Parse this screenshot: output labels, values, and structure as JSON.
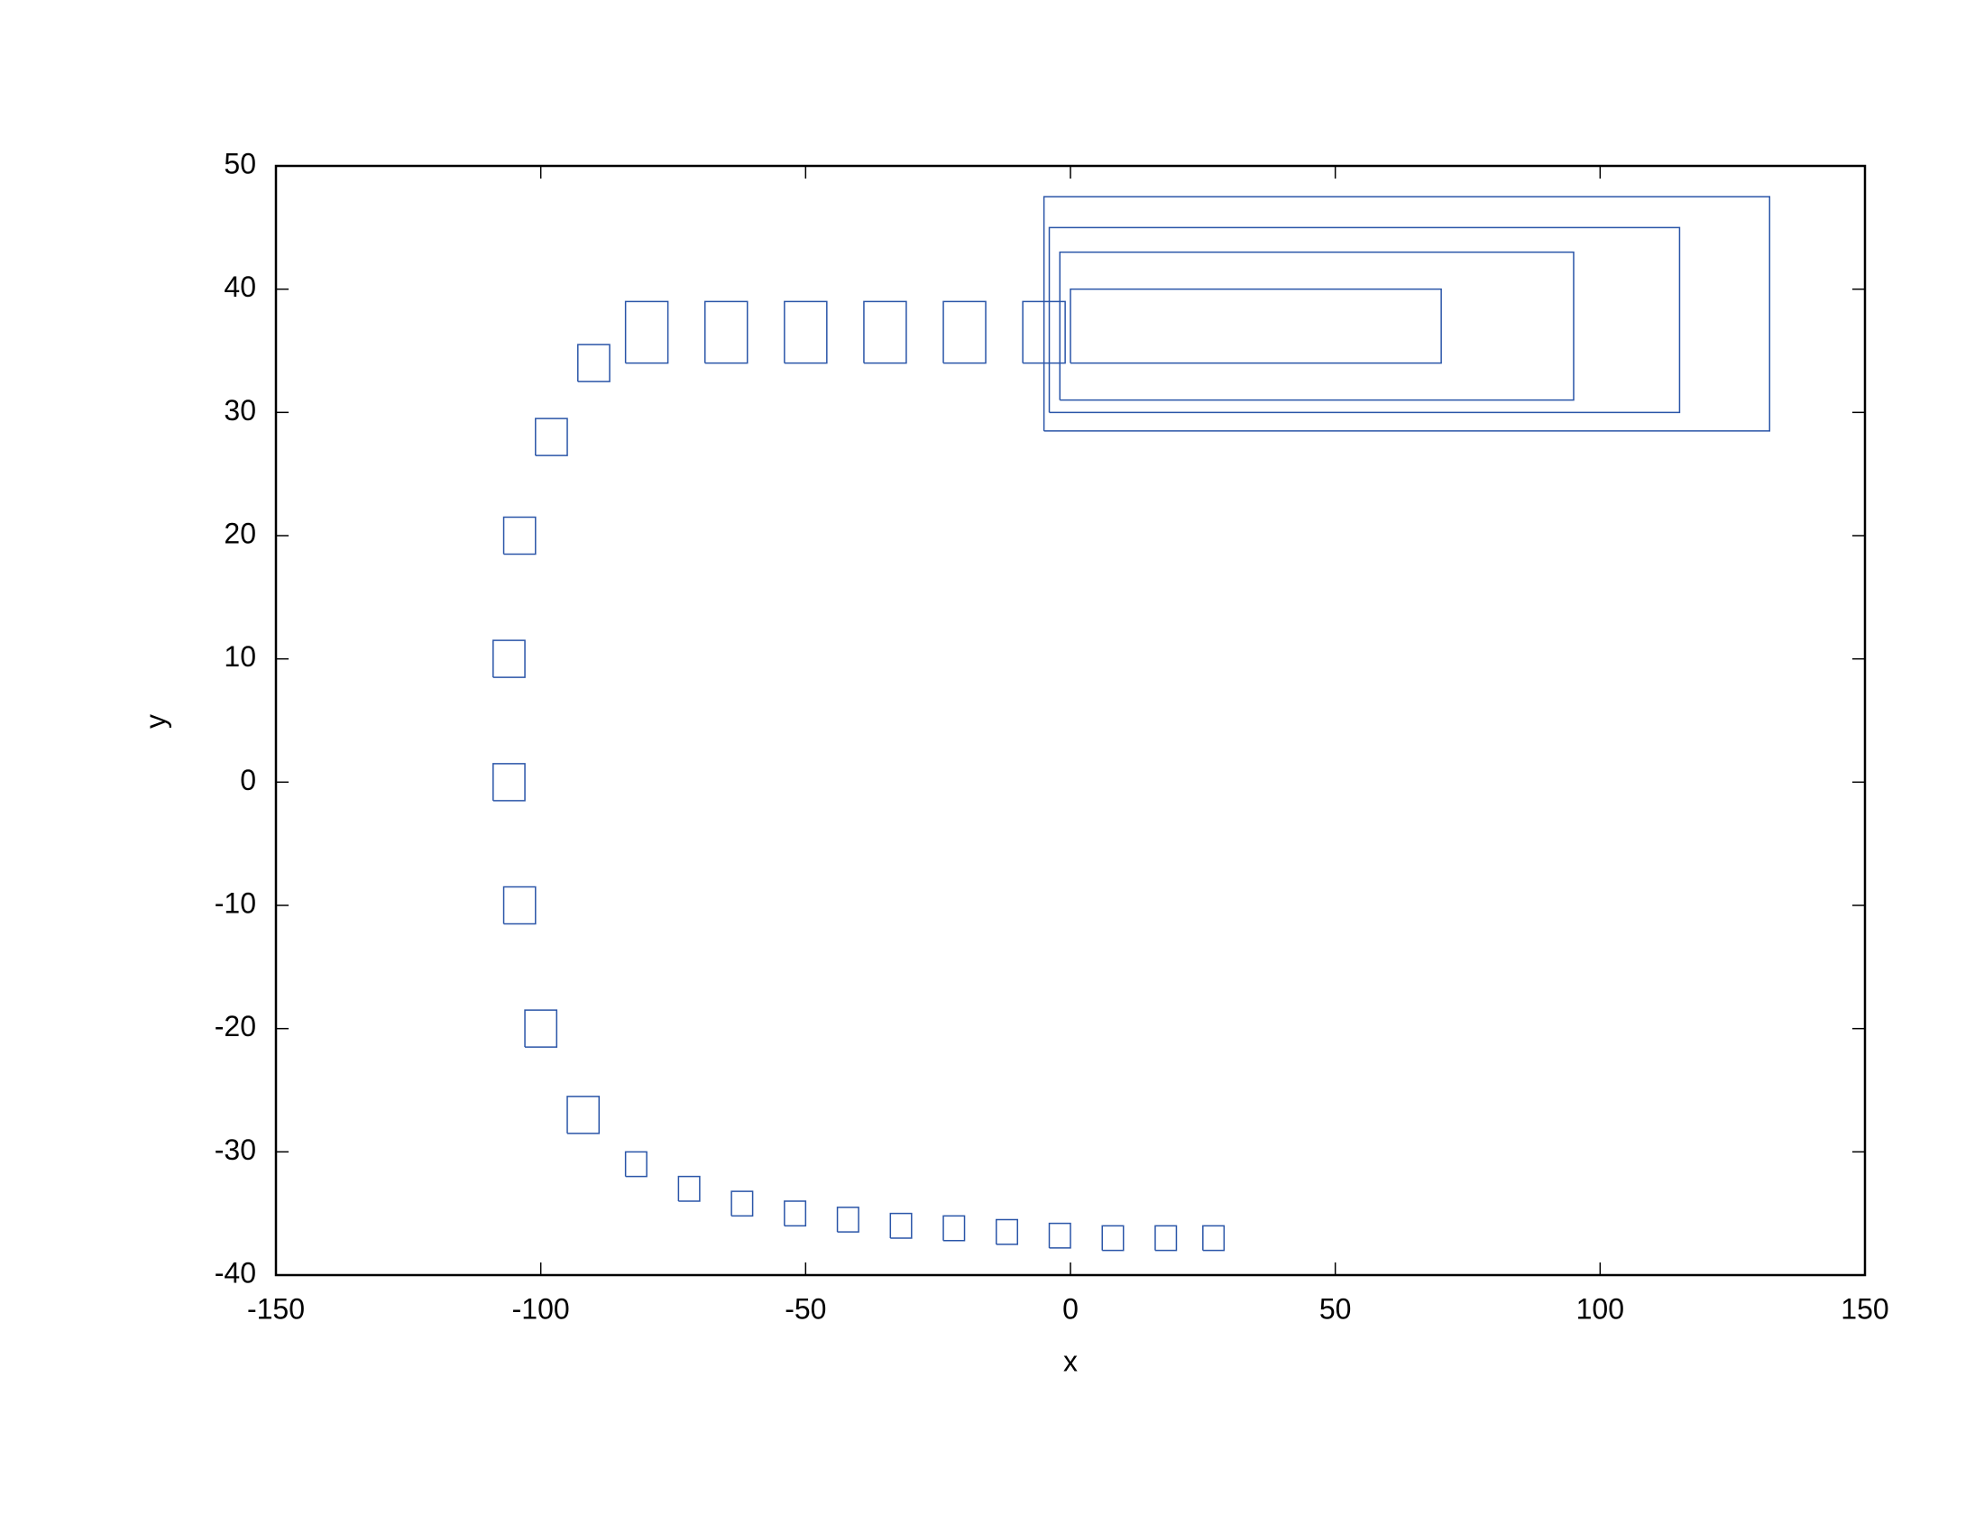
{
  "chart_data": {
    "type": "line",
    "xlabel": "x",
    "ylabel": "y",
    "xlim": [
      -150,
      150
    ],
    "xticks": [
      -150,
      -100,
      -50,
      0,
      50,
      100,
      150
    ],
    "ylim": [
      -40,
      50
    ],
    "yticks": [
      -40,
      -30,
      -20,
      -10,
      0,
      10,
      20,
      30,
      40,
      50
    ],
    "grid": false,
    "series": [
      {
        "color": "#2a55a8",
        "x": [
          25,
          29,
          29,
          25,
          25,
          null,
          16,
          20,
          20,
          16,
          16,
          null,
          6,
          10,
          10,
          6,
          6,
          null,
          -4,
          0,
          0,
          -4,
          -4,
          null,
          -14,
          -10,
          -10,
          -14,
          -14,
          null,
          -24,
          -20,
          -20,
          -24,
          -24,
          null,
          -34,
          -30,
          -30,
          -34,
          -34,
          null,
          -44,
          -40,
          -40,
          -44,
          -44,
          null,
          -54,
          -50,
          -50,
          -54,
          -54,
          null,
          -64,
          -60,
          -60,
          -64,
          -64,
          null,
          -74,
          -70,
          -70,
          -74,
          -74,
          null,
          -84,
          -80,
          -80,
          -84,
          -84,
          null,
          -95,
          -89,
          -89,
          -95,
          -95,
          null,
          -103,
          -97,
          -97,
          -103,
          -103,
          null,
          -107,
          -101,
          -101,
          -107,
          -107,
          null,
          -109,
          -103,
          -103,
          -109,
          -109,
          null,
          -109,
          -103,
          -103,
          -109,
          -109,
          null,
          -107,
          -101,
          -101,
          -107,
          -107,
          null,
          -101,
          -95,
          -95,
          -101,
          -101,
          null,
          -93,
          -87,
          -87,
          -93,
          -93,
          null,
          -84,
          -76,
          -76,
          -84,
          -84,
          null,
          -69,
          -61,
          -61,
          -69,
          -69,
          null,
          -54,
          -46,
          -46,
          -54,
          -54,
          null,
          -39,
          -31,
          -31,
          -39,
          -39,
          null,
          -24,
          -16,
          -16,
          -24,
          -24,
          null,
          -9,
          -1,
          -1,
          -9,
          -9,
          null,
          0,
          70,
          70,
          0,
          0,
          null,
          -2,
          95,
          95,
          -2,
          -2,
          null,
          -4,
          115,
          115,
          -4,
          -4,
          null,
          -5,
          132,
          132,
          -5,
          -5
        ],
        "y": [
          -38,
          -38,
          -36,
          -36,
          -38,
          null,
          -38,
          -38,
          -36,
          -36,
          -38,
          null,
          -38,
          -38,
          -36,
          -36,
          -38,
          null,
          -37.8,
          -37.8,
          -35.8,
          -35.8,
          -37.8,
          null,
          -37.5,
          -37.5,
          -35.5,
          -35.5,
          -37.5,
          null,
          -37.2,
          -37.2,
          -35.2,
          -35.2,
          -37.2,
          null,
          -37,
          -37,
          -35,
          -35,
          -37,
          null,
          -36.5,
          -36.5,
          -34.5,
          -34.5,
          -36.5,
          null,
          -36,
          -36,
          -34,
          -34,
          -36,
          null,
          -35.2,
          -35.2,
          -33.2,
          -33.2,
          -35.2,
          null,
          -34,
          -34,
          -32,
          -32,
          -34,
          null,
          -32,
          -32,
          -30,
          -30,
          -32,
          null,
          -28.5,
          -28.5,
          -25.5,
          -25.5,
          -28.5,
          null,
          -21.5,
          -21.5,
          -18.5,
          -18.5,
          -21.5,
          null,
          -11.5,
          -11.5,
          -8.5,
          -8.5,
          -11.5,
          null,
          -1.5,
          -1.5,
          1.5,
          1.5,
          -1.5,
          null,
          8.5,
          8.5,
          11.5,
          11.5,
          8.5,
          null,
          18.5,
          18.5,
          21.5,
          21.5,
          18.5,
          null,
          26.5,
          26.5,
          29.5,
          29.5,
          26.5,
          null,
          32.5,
          32.5,
          35.5,
          35.5,
          32.5,
          null,
          34,
          34,
          39,
          39,
          34,
          null,
          34,
          34,
          39,
          39,
          34,
          null,
          34,
          34,
          39,
          39,
          34,
          null,
          34,
          34,
          39,
          39,
          34,
          null,
          34,
          34,
          39,
          39,
          34,
          null,
          34,
          34,
          39,
          39,
          34,
          null,
          34,
          34,
          40,
          40,
          34,
          null,
          31,
          31,
          43,
          43,
          31,
          null,
          30,
          30,
          45,
          45,
          30,
          null,
          28.5,
          28.5,
          47.5,
          47.5,
          28.5
        ]
      }
    ]
  }
}
